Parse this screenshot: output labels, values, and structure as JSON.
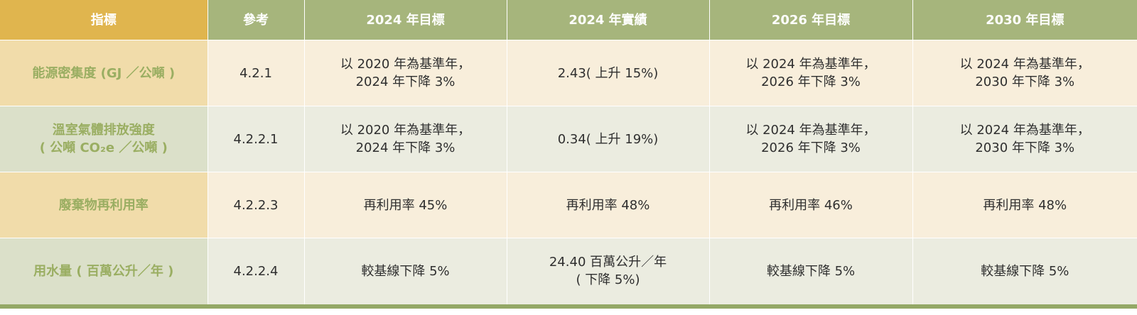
{
  "table": {
    "headers": [
      "指標",
      "參考",
      "2024 年目標",
      "2024 年實績",
      "2026 年目標",
      "2030 年目標"
    ],
    "rows": [
      {
        "indicator": [
          "能源密集度 (GJ ／公噸 )"
        ],
        "reference": "4.2.1",
        "target_2024": [
          "以 2020 年為基準年，",
          "2024 年下降 3%"
        ],
        "actual_2024": [
          "2.43( 上升 15%)"
        ],
        "target_2026": [
          "以 2024 年為基準年，",
          "2026 年下降 3%"
        ],
        "target_2030": [
          "以 2024 年為基準年，",
          "2030 年下降 3%"
        ]
      },
      {
        "indicator": [
          "溫室氣體排放強度",
          "( 公噸 CO₂e ／公噸 )"
        ],
        "reference": "4.2.2.1",
        "target_2024": [
          "以 2020 年為基準年，",
          "2024 年下降 3%"
        ],
        "actual_2024": [
          "0.34( 上升 19%)"
        ],
        "target_2026": [
          "以 2024 年為基準年，",
          "2026 年下降 3%"
        ],
        "target_2030": [
          "以 2024 年為基準年，",
          "2030 年下降 3%"
        ]
      },
      {
        "indicator": [
          "廢棄物再利用率"
        ],
        "reference": "4.2.2.3",
        "target_2024": [
          "再利用率 45%"
        ],
        "actual_2024": [
          "再利用率 48%"
        ],
        "target_2026": [
          "再利用率 46%"
        ],
        "target_2030": [
          "再利用率 48%"
        ]
      },
      {
        "indicator": [
          "用水量 ( 百萬公升／年 )"
        ],
        "reference": "4.2.2.4",
        "target_2024": [
          "較基線下降 5%"
        ],
        "actual_2024": [
          "24.40 百萬公升／年",
          "( 下降 5%)"
        ],
        "target_2026": [
          "較基線下降 5%"
        ],
        "target_2030": [
          "較基線下降 5%"
        ]
      }
    ]
  },
  "colors": {
    "header_indicator_bg": "#e0b54e",
    "header_bg": "#a6b57c",
    "row_warm_bg": "#f8eedb",
    "row_warm_indicator_bg": "#f1dcaa",
    "row_cool_bg": "#ebece0",
    "row_cool_indicator_bg": "#dbe0c9",
    "indicator_text": "#9aae62",
    "bottom_rule": "#94a866"
  }
}
